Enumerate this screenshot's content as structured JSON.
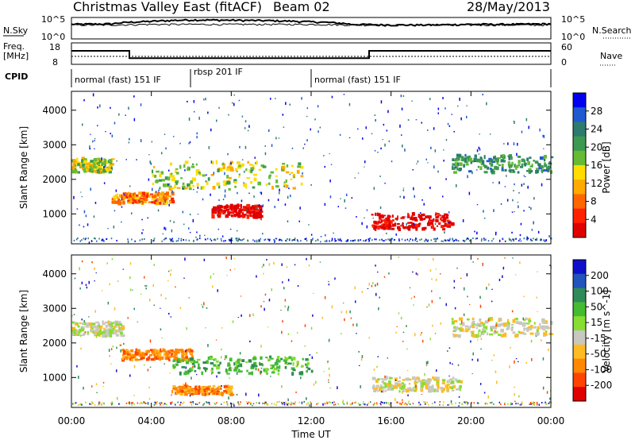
{
  "header": {
    "title": "Christmas Valley East (fitACF)",
    "beam": "Beam 02",
    "date": "28/May/2013"
  },
  "top_panels": {
    "nsky_label": "N.Sky",
    "nsky_ticks": [
      "10^5",
      "10^0"
    ],
    "nsearch_label": "N.Search",
    "nsearch_ticks": [
      "10^5",
      "10^0"
    ],
    "freq_label_line1": "Freq.",
    "freq_label_line2": "[MHz]",
    "freq_ticks": [
      "18",
      "8"
    ],
    "nave_label": "Nave",
    "nave_ticks": [
      "60",
      "0"
    ],
    "cpid_label": "CPID",
    "cpid_segments": [
      {
        "label": "normal (fast) 151 IF",
        "start_h": 0,
        "end_h": 6
      },
      {
        "label": "rbsp 201 IF",
        "start_h": 6,
        "end_h": 12
      },
      {
        "label": "normal (fast) 151 IF",
        "start_h": 12,
        "end_h": 24
      }
    ]
  },
  "x_axis": {
    "label": "Time UT",
    "ticks": [
      "00:00",
      "04:00",
      "08:00",
      "12:00",
      "16:00",
      "20:00",
      "00:00"
    ]
  },
  "colorbars": {
    "power": {
      "label": "Power [dB]",
      "ticks": [
        "28",
        "24",
        "20",
        "16",
        "12",
        "8",
        "4"
      ],
      "colors": [
        "#0000ee",
        "#1e5bd0",
        "#2d7b6e",
        "#3c9a50",
        "#66bb33",
        "#ffdd00",
        "#ffaa00",
        "#ff6600",
        "#ff2200",
        "#e00000"
      ]
    },
    "velocity": {
      "label": "Velocity [m s^-1]",
      "ticks": [
        "200",
        "100",
        "50",
        "15",
        "-15",
        "-50",
        "-100",
        "-200"
      ],
      "colors": [
        "#1010cc",
        "#2255bb",
        "#2e8b57",
        "#44bb33",
        "#88dd33",
        "#c8c8c0",
        "#ffbb22",
        "#ff8800",
        "#ff4400",
        "#e00000"
      ]
    }
  },
  "chart_data": [
    {
      "type": "line",
      "title": "N.Sky / N.Search",
      "x": [
        0,
        2,
        4,
        6,
        8,
        10,
        12,
        14,
        16,
        18,
        20,
        22,
        24
      ],
      "series": [
        {
          "name": "N.Sky",
          "values": [
            3000,
            4000,
            20000,
            50000,
            40000,
            30000,
            15000,
            3000,
            2000,
            2000,
            3000,
            3000,
            4000
          ]
        },
        {
          "name": "N.Search",
          "values": [
            2000,
            2000,
            3000,
            3000,
            3000,
            3000,
            3000,
            2000,
            2000,
            2000,
            2000,
            2000,
            2000
          ]
        }
      ],
      "ylim": [
        1,
        100000
      ]
    },
    {
      "type": "line",
      "title": "Freq. / Nave",
      "x": [
        0,
        2.9,
        2.9,
        14.9,
        14.9,
        24
      ],
      "series": [
        {
          "name": "Freq. [MHz]",
          "values": [
            14.5,
            14.5,
            10.5,
            10.5,
            14.5,
            14.5
          ]
        },
        {
          "name": "Nave",
          "values": [
            20,
            20,
            20,
            20,
            20,
            20
          ]
        }
      ],
      "ylim": [
        8,
        18
      ]
    },
    {
      "type": "heatmap",
      "title": "Power",
      "xlabel": "Time UT",
      "ylabel": "Slant Range [km]",
      "xlim": [
        0,
        24
      ],
      "ylim": [
        180,
        4500
      ],
      "yticks": [
        1000,
        2000,
        3000,
        4000
      ],
      "colorbar_label": "Power [dB]",
      "features": [
        {
          "name": "early band",
          "x": [
            0.0,
            2.0
          ],
          "range": [
            2200,
            2600
          ],
          "value": 14
        },
        {
          "name": "morning band",
          "x": [
            2.0,
            5.0
          ],
          "range": [
            1300,
            1600
          ],
          "value": 20
        },
        {
          "name": "midday core",
          "x": [
            7.0,
            9.5
          ],
          "range": [
            900,
            1250
          ],
          "value": 28
        },
        {
          "name": "upper band",
          "x": [
            4.0,
            11.5
          ],
          "range": [
            1700,
            2500
          ],
          "value": 14
        },
        {
          "name": "afternoon core",
          "x": [
            15.0,
            19.0
          ],
          "range": [
            550,
            1000
          ],
          "value": 28
        },
        {
          "name": "late band",
          "x": [
            19.0,
            24.0
          ],
          "range": [
            2200,
            2700
          ],
          "value": 8
        }
      ]
    },
    {
      "type": "heatmap",
      "title": "Velocity",
      "xlabel": "Time UT",
      "ylabel": "Slant Range [km]",
      "xlim": [
        0,
        24
      ],
      "ylim": [
        180,
        4500
      ],
      "yticks": [
        1000,
        2000,
        3000,
        4000
      ],
      "colorbar_label": "Velocity [m s^-1]",
      "features": [
        {
          "name": "early band",
          "x": [
            0.0,
            2.5
          ],
          "range": [
            2200,
            2600
          ],
          "value": 0
        },
        {
          "name": "morning band",
          "x": [
            2.5,
            6.0
          ],
          "range": [
            1500,
            1800
          ],
          "value": -50
        },
        {
          "name": "midday band",
          "x": [
            5.0,
            12.0
          ],
          "range": [
            1100,
            1600
          ],
          "value": 50
        },
        {
          "name": "low echo",
          "x": [
            5.0,
            8.0
          ],
          "range": [
            500,
            750
          ],
          "value": -50
        },
        {
          "name": "afternoon band",
          "x": [
            15.0,
            19.5
          ],
          "range": [
            600,
            1000
          ],
          "value": 0
        },
        {
          "name": "late band",
          "x": [
            19.0,
            24.0
          ],
          "range": [
            2200,
            2700
          ],
          "value": 0
        }
      ]
    }
  ]
}
